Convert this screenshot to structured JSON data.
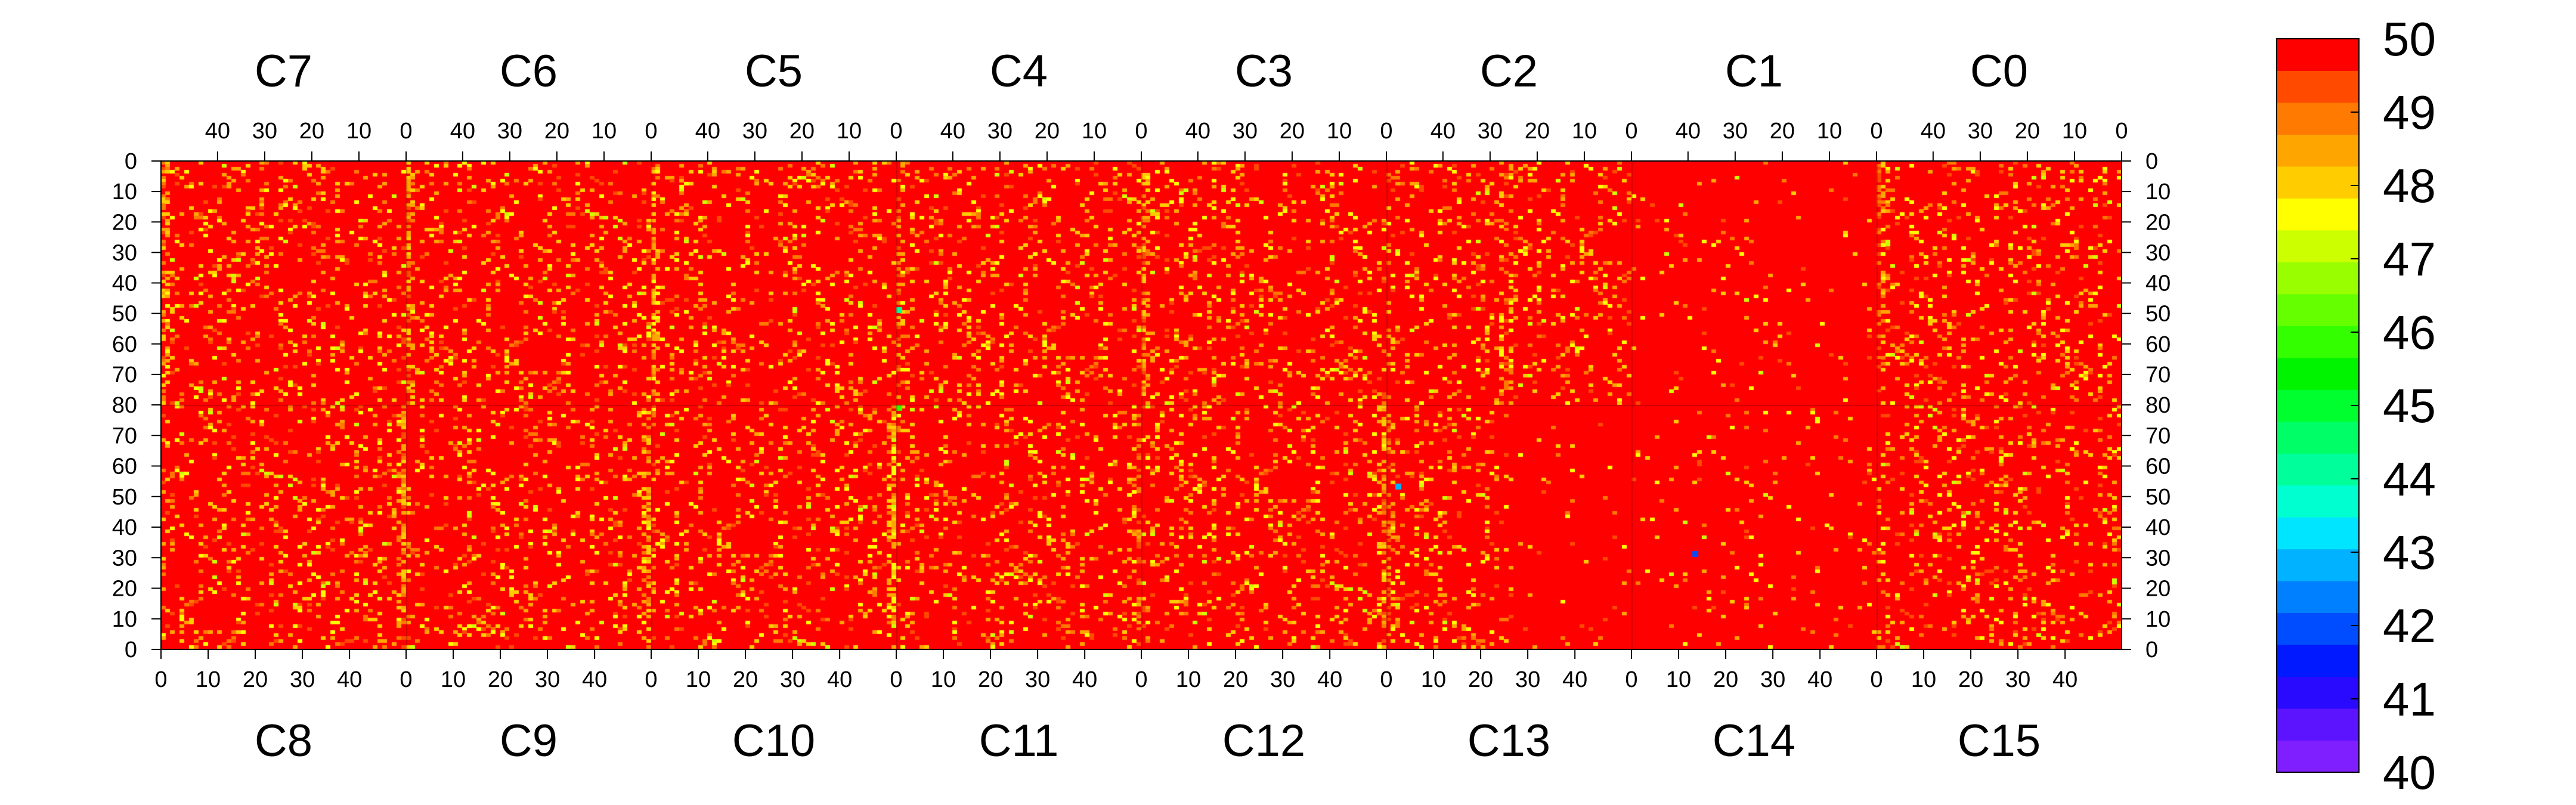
{
  "chart_data": {
    "type": "heatmap",
    "title": "",
    "xlabel": "",
    "ylabel": "",
    "top_chips": [
      "C7",
      "C6",
      "C5",
      "C4",
      "C3",
      "C2",
      "C1",
      "C0"
    ],
    "bottom_chips": [
      "C8",
      "C9",
      "C10",
      "C11",
      "C12",
      "C13",
      "C14",
      "C15"
    ],
    "columns_per_chip": 52,
    "top_x_ticks": [
      40,
      30,
      20,
      10,
      0
    ],
    "bottom_x_ticks": [
      0,
      10,
      20,
      30,
      40
    ],
    "top_y_ticks": [
      0,
      10,
      20,
      30,
      40,
      50,
      60,
      70,
      80
    ],
    "bottom_y_ticks": [
      70,
      60,
      50,
      40,
      30,
      20,
      10,
      0
    ],
    "y_range_top": [
      0,
      80
    ],
    "y_range_bottom": [
      80,
      0
    ],
    "xlim": [
      0,
      52
    ],
    "z_range": [
      40,
      50
    ],
    "colorbar_ticks": [
      50,
      49,
      48,
      47,
      46,
      45,
      44,
      43,
      42,
      41,
      40
    ],
    "dominant_value": 50,
    "hot_bands": [
      {
        "chip": "C7",
        "column": 1,
        "mean": 48.6
      },
      {
        "chip": "C6",
        "column": 1,
        "mean": 48.8
      },
      {
        "chip": "C5",
        "column": 1,
        "mean": 48.2
      },
      {
        "chip": "C4",
        "column": 1,
        "mean": 49.2
      },
      {
        "chip": "C3",
        "column": 1,
        "mean": 48.7
      },
      {
        "chip": "C2",
        "column": 26,
        "mean": 49.4
      },
      {
        "chip": "C0",
        "column": 1,
        "mean": 49.5
      },
      {
        "chip": "C8",
        "column": 52,
        "mean": 48.6
      },
      {
        "chip": "C9",
        "column": 52,
        "mean": 48.4
      },
      {
        "chip": "C10",
        "column": 52,
        "mean": 48.1
      },
      {
        "chip": "C11",
        "column": 52,
        "mean": 49.2
      },
      {
        "chip": "C12",
        "column": 52,
        "mean": 48.5
      },
      {
        "chip": "C13",
        "column": 1,
        "mean": 49.3
      }
    ],
    "outliers": [
      {
        "chip": "C4",
        "column": 1,
        "row": 48,
        "value": 44
      },
      {
        "chip": "C4",
        "column": 1,
        "row": 80,
        "value": 46
      },
      {
        "chip": "C13",
        "column": 3,
        "row": 54,
        "value": 43
      },
      {
        "chip": "C14",
        "column": 14,
        "row": 32,
        "value": 42
      }
    ]
  },
  "colors": {
    "scale": [
      "#7f1fff",
      "#5c14ff",
      "#2a0aff",
      "#0019ff",
      "#004cff",
      "#0080ff",
      "#00b2ff",
      "#00e5ff",
      "#00ffd0",
      "#00ff9a",
      "#00ff66",
      "#00ff2f",
      "#00f400",
      "#33ff00",
      "#66ff00",
      "#99ff00",
      "#ccff00",
      "#ffff00",
      "#ffcc00",
      "#ffa500",
      "#ff7a00",
      "#ff4a00",
      "#ff0000"
    ]
  }
}
